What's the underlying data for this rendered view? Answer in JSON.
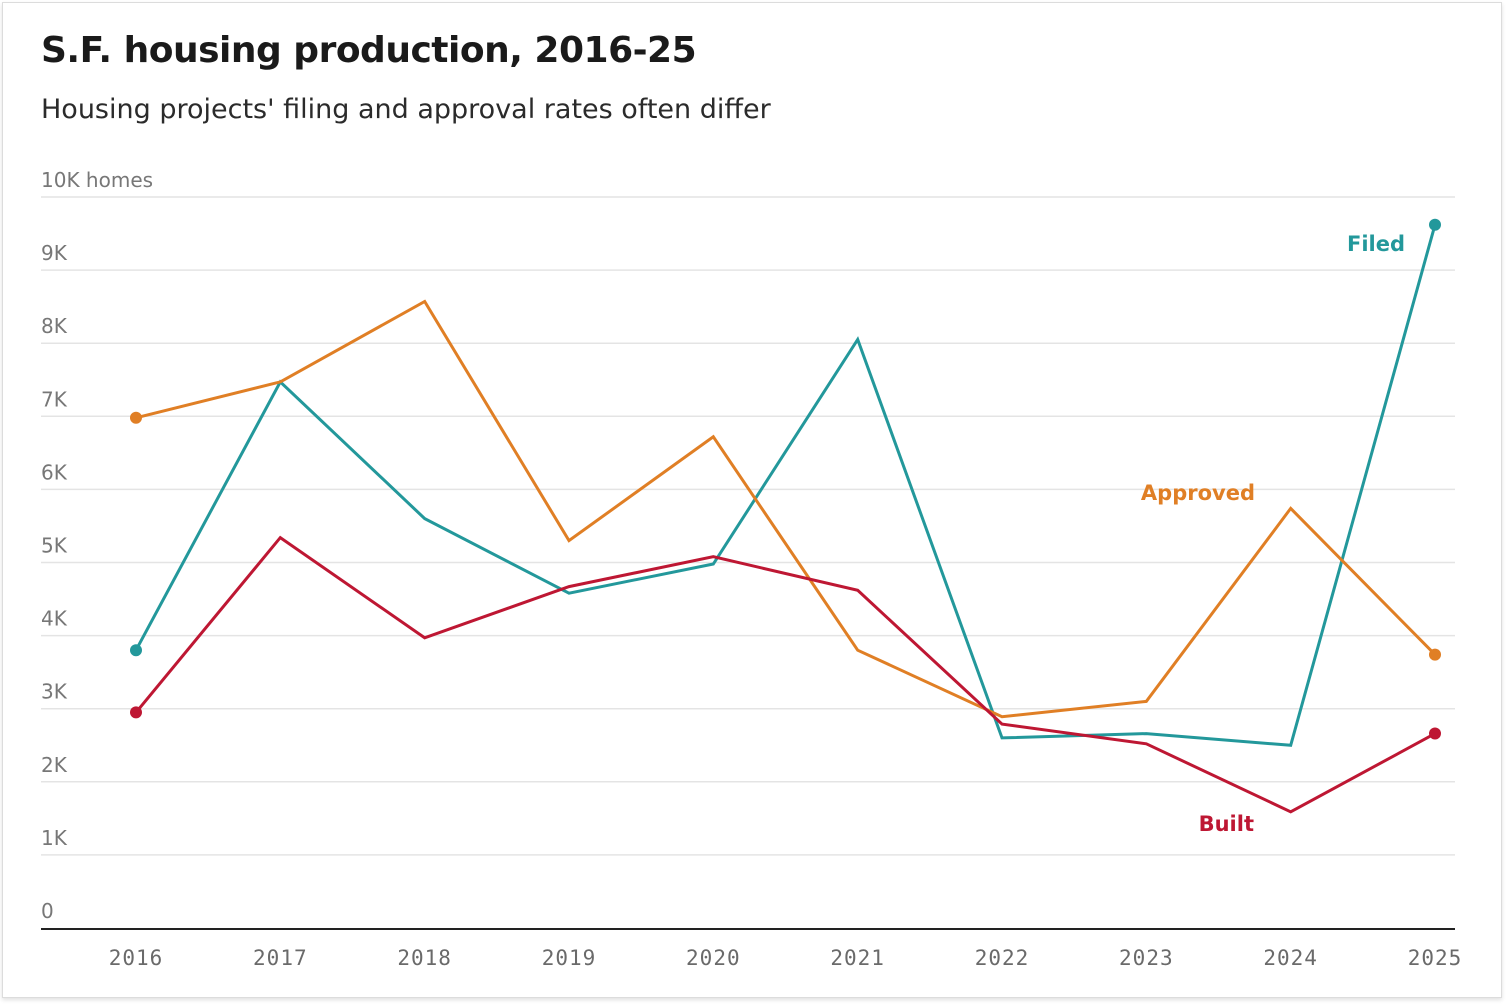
{
  "title": "S.F. housing production, 2016-25",
  "subtitle": "Housing projects' filing and approval rates often differ",
  "chart_data": {
    "type": "line",
    "title": "S.F. housing production, 2016-25",
    "subtitle": "Housing projects' filing and approval rates often differ",
    "xlabel": "",
    "ylabel": "homes",
    "x": [
      "2016",
      "2017",
      "2018",
      "2019",
      "2020",
      "2021",
      "2022",
      "2023",
      "2024",
      "2025"
    ],
    "ylim": [
      0,
      10000
    ],
    "yticks": [
      {
        "value": 0,
        "label": "0"
      },
      {
        "value": 1000,
        "label": "1K"
      },
      {
        "value": 2000,
        "label": "2K"
      },
      {
        "value": 3000,
        "label": "3K"
      },
      {
        "value": 4000,
        "label": "4K"
      },
      {
        "value": 5000,
        "label": "5K"
      },
      {
        "value": 6000,
        "label": "6K"
      },
      {
        "value": 7000,
        "label": "7K"
      },
      {
        "value": 8000,
        "label": "8K"
      },
      {
        "value": 9000,
        "label": "9K"
      },
      {
        "value": 10000,
        "label": "10K homes"
      }
    ],
    "grid": true,
    "series": [
      {
        "name": "Filed",
        "color": "#23989b",
        "values": [
          3800,
          7470,
          5600,
          4580,
          4980,
          8050,
          2600,
          2660,
          2500,
          9620
        ]
      },
      {
        "name": "Approved",
        "color": "#e07f25",
        "values": [
          6980,
          7470,
          8570,
          5300,
          6720,
          3800,
          2890,
          3100,
          5740,
          3740
        ]
      },
      {
        "name": "Built",
        "color": "#be1733",
        "values": [
          2950,
          5340,
          3970,
          4670,
          5080,
          4620,
          2790,
          2520,
          1590,
          2660
        ]
      }
    ]
  }
}
